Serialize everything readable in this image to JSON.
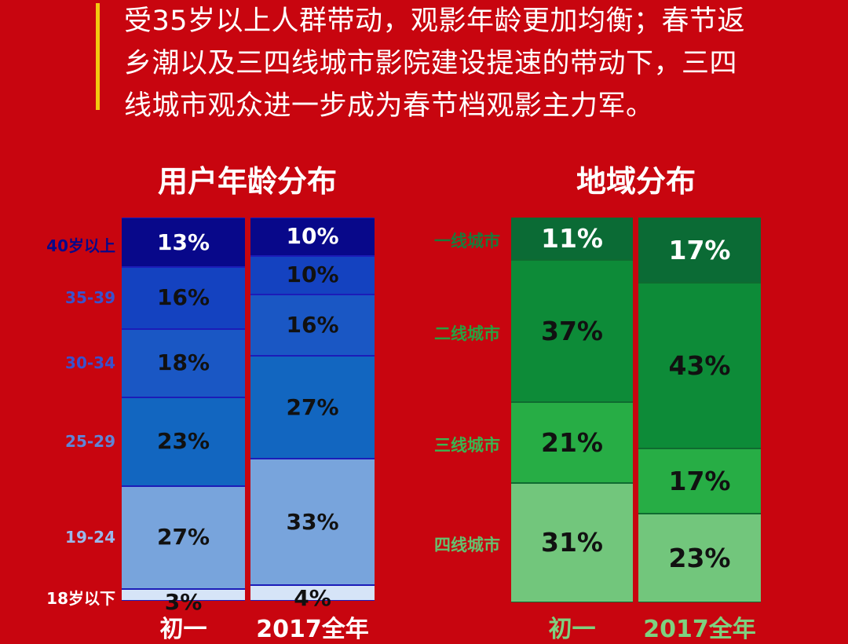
{
  "headline": {
    "line1": "受35岁以上人群带动，观影年龄更加均衡；春节返",
    "line2": "乡潮以及三四线城市影院建设提速的带动下，三四",
    "line3": "线城市观众进一步成为春节档观影主力军。"
  },
  "colors": {
    "background": "#c8050f",
    "accent": "#f2c811"
  },
  "chart_data": [
    {
      "type": "bar",
      "stacked": true,
      "title": "用户年龄分布",
      "categories": [
        "初一",
        "2017全年"
      ],
      "segment_labels": [
        "40岁以上",
        "35-39",
        "30-34",
        "25-29",
        "19-24",
        "18岁以下"
      ],
      "series": [
        {
          "name": "40岁以上",
          "values": [
            13,
            10
          ],
          "color": "#08088a"
        },
        {
          "name": "35-39",
          "values": [
            16,
            10
          ],
          "color": "#1442c0"
        },
        {
          "name": "30-34",
          "values": [
            18,
            16
          ],
          "color": "#1a57c4"
        },
        {
          "name": "25-29",
          "values": [
            23,
            27
          ],
          "color": "#1266c0"
        },
        {
          "name": "19-24",
          "values": [
            27,
            33
          ],
          "color": "#78a4dc"
        },
        {
          "name": "18岁以下",
          "values": [
            3,
            4
          ],
          "color": "#d6e4f7"
        }
      ],
      "label_colors": [
        "#08088a",
        "#3a52cc",
        "#3a52cc",
        "#5f85d6",
        "#9ab8ea",
        "#ffffff"
      ],
      "xlabel_color": "#ffffff"
    },
    {
      "type": "bar",
      "stacked": true,
      "title": "地域分布",
      "categories": [
        "初一",
        "2017全年"
      ],
      "segment_labels": [
        "一线城市",
        "二线城市",
        "三线城市",
        "四线城市"
      ],
      "series": [
        {
          "name": "一线城市",
          "values": [
            11,
            17
          ],
          "color": "#0b6b35"
        },
        {
          "name": "二线城市",
          "values": [
            37,
            43
          ],
          "color": "#0d8b38"
        },
        {
          "name": "三线城市",
          "values": [
            21,
            17
          ],
          "color": "#27ad45"
        },
        {
          "name": "四线城市",
          "values": [
            31,
            23
          ],
          "color": "#72c67c"
        }
      ],
      "label_colors": [
        "#1a7a3a",
        "#29a040",
        "#3bb550",
        "#66c06e"
      ],
      "xlabel_color": "#7ed17f"
    }
  ]
}
